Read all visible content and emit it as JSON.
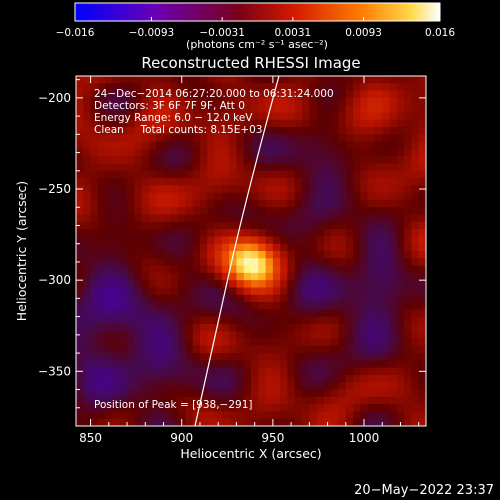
{
  "chart_data": {
    "type": "heatmap",
    "title": "Reconstructed RHESSI Image",
    "xlabel": "Heliocentric X (arcsec)",
    "ylabel": "Heliocentric Y (arcsec)",
    "xlim": [
      842,
      1034
    ],
    "ylim": [
      -380,
      -188
    ],
    "x_ticks": [
      850,
      900,
      950,
      1000
    ],
    "y_ticks": [
      -200,
      -250,
      -300,
      -350
    ],
    "colorbar": {
      "label": "(photons cm⁻² s⁻¹ asec⁻²)",
      "range": [
        -0.016,
        0.016
      ],
      "ticks": [
        "−0.016",
        "−0.0093",
        "−0.0031",
        "0.0031",
        "0.0093",
        "0.016"
      ],
      "colormap": "blue-purple-red-yellow-white"
    },
    "info_lines": [
      "24−Dec−2014 06:27:20.000 to 06:31:24.000",
      "Detectors: 3F 6F 7F 9F, Att 0",
      "Energy Range: 6.0 − 12.0 keV",
      "Clean     Total counts: 8.15E+03"
    ],
    "peak": {
      "label": "Position of Peak = [938,−291]",
      "x": 938,
      "y": -291,
      "value": 0.016
    },
    "grid": false
  },
  "footer": {
    "timestamp": "20−May−2022 23:37"
  }
}
